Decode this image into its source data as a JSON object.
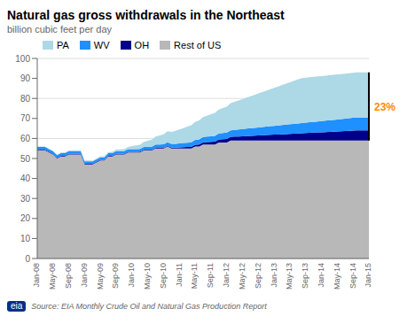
{
  "chart_data": {
    "type": "area",
    "stacked": true,
    "title": "Natural gas gross withdrawals in the Northeast",
    "subtitle": "billion cubic feet per day",
    "annotation": "23%",
    "source": "Source: EIA Monthly Crude Oil and Natural Gas Production Report",
    "logo": "eia",
    "grid": true,
    "ylim": [
      0,
      100
    ],
    "yticks": [
      0,
      10,
      20,
      30,
      40,
      50,
      60,
      70,
      80,
      90,
      100
    ],
    "categories": [
      "Jan-08",
      null,
      null,
      null,
      "May-08",
      null,
      null,
      null,
      "Sep-08",
      null,
      null,
      null,
      "Jan-09",
      null,
      null,
      null,
      "May-09",
      null,
      null,
      null,
      "Sep-09",
      null,
      null,
      null,
      "Jan-10",
      null,
      null,
      null,
      "May-10",
      null,
      null,
      null,
      "Sep-10",
      null,
      null,
      null,
      "Jan-11",
      null,
      null,
      null,
      "May-11",
      null,
      null,
      null,
      "Sep-11",
      null,
      null,
      null,
      "Jan-12",
      null,
      null,
      null,
      "May-12",
      null,
      null,
      null,
      "Sep-12",
      null,
      null,
      null,
      "Jan-13",
      null,
      null,
      null,
      "May-13",
      null,
      null,
      null,
      "Sep-13",
      null,
      null,
      null,
      "Jan-14",
      null,
      null,
      null,
      "May-14",
      null,
      null,
      null,
      "Sep-14",
      null,
      null,
      null,
      "Jan-15"
    ],
    "series": [
      {
        "name": "Rest of US",
        "color": "#B8B8B8",
        "values": [
          54,
          54,
          54,
          53,
          52,
          50,
          51,
          51,
          52,
          52,
          52,
          52,
          47,
          47,
          47,
          48,
          49,
          49,
          51,
          51,
          52,
          52,
          52,
          53,
          53,
          53,
          53,
          54,
          54,
          54,
          55,
          55,
          55,
          56,
          55,
          55,
          55,
          55,
          55,
          55,
          56,
          56,
          57,
          57,
          57,
          57,
          58,
          58,
          58,
          59,
          59,
          59,
          59,
          59,
          59,
          59,
          59,
          59,
          59,
          59,
          59,
          59,
          59,
          59,
          59,
          59,
          59,
          59,
          59,
          59,
          59,
          59,
          59,
          59,
          59,
          59,
          59,
          59,
          59,
          59,
          59,
          59,
          59,
          59,
          59
        ]
      },
      {
        "name": "OH",
        "color": "#00008B",
        "values": [
          0.3,
          0.3,
          0.3,
          0.3,
          0.3,
          0.3,
          0.3,
          0.3,
          0.3,
          0.3,
          0.3,
          0.3,
          0.3,
          0.3,
          0.3,
          0.3,
          0.3,
          0.3,
          0.3,
          0.3,
          0.3,
          0.3,
          0.3,
          0.3,
          0.3,
          0.3,
          0.3,
          0.3,
          0.3,
          0.3,
          0.3,
          0.3,
          0.3,
          0.3,
          0.4,
          0.4,
          0.5,
          0.6,
          0.7,
          0.8,
          0.9,
          1.0,
          1.1,
          1.2,
          1.3,
          1.4,
          1.5,
          1.6,
          1.7,
          1.8,
          1.9,
          2.0,
          2.1,
          2.2,
          2.3,
          2.4,
          2.5,
          2.6,
          2.7,
          2.8,
          2.9,
          3.0,
          3.1,
          3.2,
          3.3,
          3.4,
          3.5,
          3.6,
          3.7,
          3.8,
          3.9,
          4.0,
          4.1,
          4.2,
          4.3,
          4.4,
          4.5,
          4.6,
          4.7,
          4.8,
          4.9,
          5.0,
          5.0,
          5.0,
          5.0
        ]
      },
      {
        "name": "WV",
        "color": "#1E90FF",
        "values": [
          1.5,
          1.5,
          1.5,
          1.4,
          1.4,
          1.4,
          1.4,
          1.4,
          1.4,
          1.4,
          1.4,
          1.4,
          1.3,
          1.3,
          1.3,
          1.3,
          1.3,
          1.3,
          1.3,
          1.3,
          1.3,
          1.3,
          1.3,
          1.3,
          1.4,
          1.4,
          1.5,
          1.5,
          1.6,
          1.6,
          1.7,
          1.7,
          1.8,
          1.8,
          1.9,
          1.9,
          2.0,
          2.1,
          2.2,
          2.3,
          2.4,
          2.5,
          2.6,
          2.7,
          2.8,
          2.9,
          3.0,
          3.1,
          3.2,
          3.3,
          3.4,
          3.5,
          3.6,
          3.7,
          3.8,
          3.9,
          4.0,
          4.1,
          4.2,
          4.3,
          4.4,
          4.5,
          4.6,
          4.7,
          4.8,
          4.9,
          5.0,
          5.1,
          5.2,
          5.3,
          5.4,
          5.5,
          5.6,
          5.7,
          5.8,
          5.9,
          6.0,
          6.1,
          6.2,
          6.3,
          6.4,
          6.5,
          6.5,
          6.5,
          6.5
        ]
      },
      {
        "name": "PA",
        "color": "#ADD8E6",
        "values": [
          0.2,
          0.2,
          0.2,
          0.2,
          0.2,
          0.2,
          0.3,
          0.3,
          0.3,
          0.4,
          0.4,
          0.4,
          0.4,
          0.4,
          0.3,
          0.4,
          0.5,
          0.5,
          0.6,
          0.7,
          0.8,
          0.9,
          1.0,
          1.2,
          1.5,
          1.8,
          2.1,
          2.5,
          3.0,
          3.5,
          4.0,
          4.5,
          5.0,
          5.5,
          6.0,
          6.5,
          7.0,
          7.5,
          8.0,
          8.5,
          9.0,
          9.5,
          10.0,
          10.5,
          11.0,
          11.5,
          12.0,
          12.5,
          13.0,
          13.5,
          14.0,
          14.5,
          15.0,
          15.5,
          16.0,
          16.5,
          17.0,
          17.5,
          18.0,
          18.5,
          19.0,
          19.5,
          20.0,
          20.5,
          21.0,
          21.5,
          22.0,
          22.5,
          22.5,
          22.5,
          22.5,
          22.5,
          22.5,
          22.5,
          22.5,
          22.5,
          22.5,
          22.5,
          22.5,
          22.5,
          22.5,
          22.5,
          22.5,
          22.5,
          22.5
        ]
      }
    ]
  }
}
